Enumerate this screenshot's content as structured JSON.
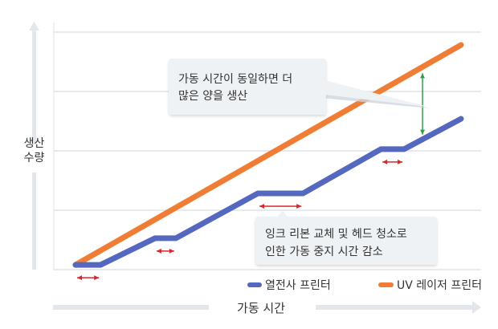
{
  "chart_data": {
    "type": "line",
    "title": "",
    "xlabel": "가동 시간",
    "ylabel": "생산 수량",
    "xlim": [
      0,
      100
    ],
    "ylim": [
      0,
      100
    ],
    "grid": true,
    "legend_position": "bottom-right",
    "series": [
      {
        "name": "열전사 프린터",
        "color": "#5468bf",
        "x": [
          0,
          6.5,
          20.6,
          26,
          47.3,
          59,
          79.2,
          85.2,
          100
        ],
        "y": [
          2,
          2,
          13.2,
          13.2,
          32.1,
          32.1,
          50.7,
          50.7,
          63.5
        ]
      },
      {
        "name": "UV 레이저 프린터",
        "color": "#ef7d35",
        "x": [
          0,
          100
        ],
        "y": [
          2,
          94.6
        ]
      }
    ],
    "downtime_ranges": [
      [
        0,
        6.5
      ],
      [
        20.6,
        26
      ],
      [
        47.3,
        59
      ],
      [
        79.2,
        85.2
      ]
    ],
    "gap_marker_x": 90,
    "annotations": [
      {
        "id": "same-time",
        "lines": [
          "가동 시간이 동일하면 더",
          "많은 양을 생산"
        ]
      },
      {
        "id": "downtime",
        "lines": [
          "잉크 리본 교체 및 헤드 청소로",
          "인한 가동 중지 시간 감소"
        ]
      }
    ],
    "colors": {
      "downtime_arrow": "#d9262b",
      "gap_arrow": "#2e9e4a",
      "grid": "#dde2e8",
      "axis_arrow": "#e3e7eb"
    }
  }
}
